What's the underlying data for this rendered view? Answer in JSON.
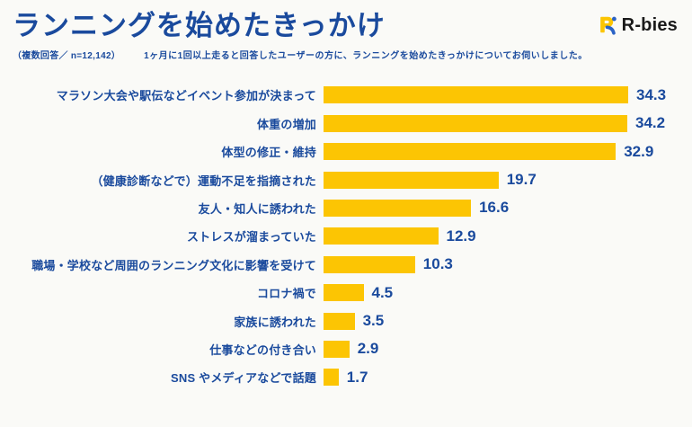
{
  "page": {
    "background": "#FAFAF7"
  },
  "header": {
    "title": "ランニングを始めたきっかけ",
    "note": "（複数回答／ n=12,142）",
    "description": "1ヶ月に1回以上走ると回答したユーザーの方に、ランニングを始めたきっかけについてお伺いしました。"
  },
  "logo": {
    "text": "R-bies"
  },
  "colors": {
    "title_blue": "#1A4A9D",
    "bar_yellow": "#FCC503",
    "logo_black": "#1A1A1A",
    "background": "#FAFAF7"
  },
  "chart_data": {
    "type": "bar",
    "orientation": "horizontal",
    "title": "ランニングを始めたきっかけ",
    "unit": "%",
    "xlim": [
      0,
      35
    ],
    "grid": false,
    "value_labels": "end-of-bar",
    "categories": [
      "マラソン大会や駅伝などイベント参加が決まって",
      "体重の増加",
      "体型の修正・維持",
      "（健康診断などで）運動不足を指摘された",
      "友人・知人に誘われた",
      "ストレスが溜まっていた",
      "職場・学校など周囲のランニング文化に影響を受けて",
      "コロナ禍で",
      "家族に誘われた",
      "仕事などの付き合い",
      "SNS やメディアなどで話題"
    ],
    "values": [
      34.3,
      34.2,
      32.9,
      19.7,
      16.6,
      12.9,
      10.3,
      4.5,
      3.5,
      2.9,
      1.7
    ]
  }
}
